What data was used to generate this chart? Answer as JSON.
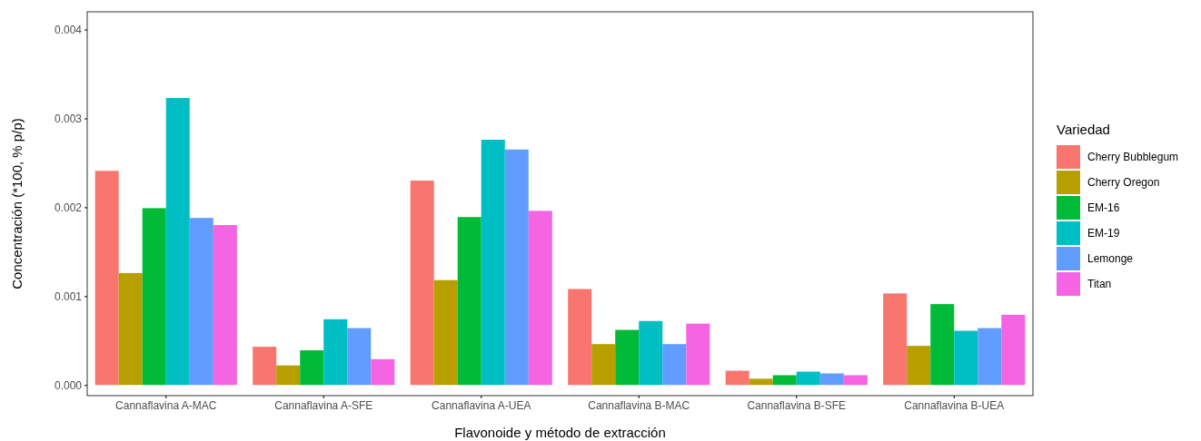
{
  "chart_data": {
    "type": "bar",
    "xlabel": "Flavonoide y método de extracción",
    "ylabel": "Concentración (*100, % p/p)",
    "legend_title": "Variedad",
    "legend": "right",
    "grid": false,
    "categories": [
      "Cannaflavina A-MAC",
      "Cannaflavina A-SFE",
      "Cannaflavina A-UEA",
      "Cannaflavina B-MAC",
      "Cannaflavina B-SFE",
      "Cannaflavina B-UEA"
    ],
    "ylim": [
      -0.00012,
      0.0042
    ],
    "yticks": [
      {
        "value": 0,
        "label": "0.000"
      },
      {
        "value": 0.001,
        "label": "0.001"
      },
      {
        "value": 0.002,
        "label": "0.002"
      },
      {
        "value": 0.003,
        "label": "0.003"
      },
      {
        "value": 0.004,
        "label": "0.004"
      }
    ],
    "series": [
      {
        "name": "Cherry Bubblegum",
        "color": "#f8766d",
        "values": [
          0.00241,
          0.00043,
          0.0023,
          0.00108,
          0.00016,
          0.00103
        ]
      },
      {
        "name": "Cherry Oregon",
        "color": "#b79f00",
        "values": [
          0.00126,
          0.00022,
          0.00118,
          0.00046,
          7e-05,
          0.00044
        ]
      },
      {
        "name": "EM-16",
        "color": "#00ba38",
        "values": [
          0.00199,
          0.00039,
          0.00189,
          0.00062,
          0.00011,
          0.00091
        ]
      },
      {
        "name": "EM-19",
        "color": "#00bfc4",
        "values": [
          0.00323,
          0.00074,
          0.00276,
          0.00072,
          0.00015,
          0.00061
        ]
      },
      {
        "name": "Lemonge",
        "color": "#619cff",
        "values": [
          0.00188,
          0.00064,
          0.00265,
          0.00046,
          0.00013,
          0.00064
        ]
      },
      {
        "name": "Titan",
        "color": "#f564e3",
        "values": [
          0.0018,
          0.00029,
          0.00196,
          0.00069,
          0.00011,
          0.00079
        ]
      }
    ]
  }
}
